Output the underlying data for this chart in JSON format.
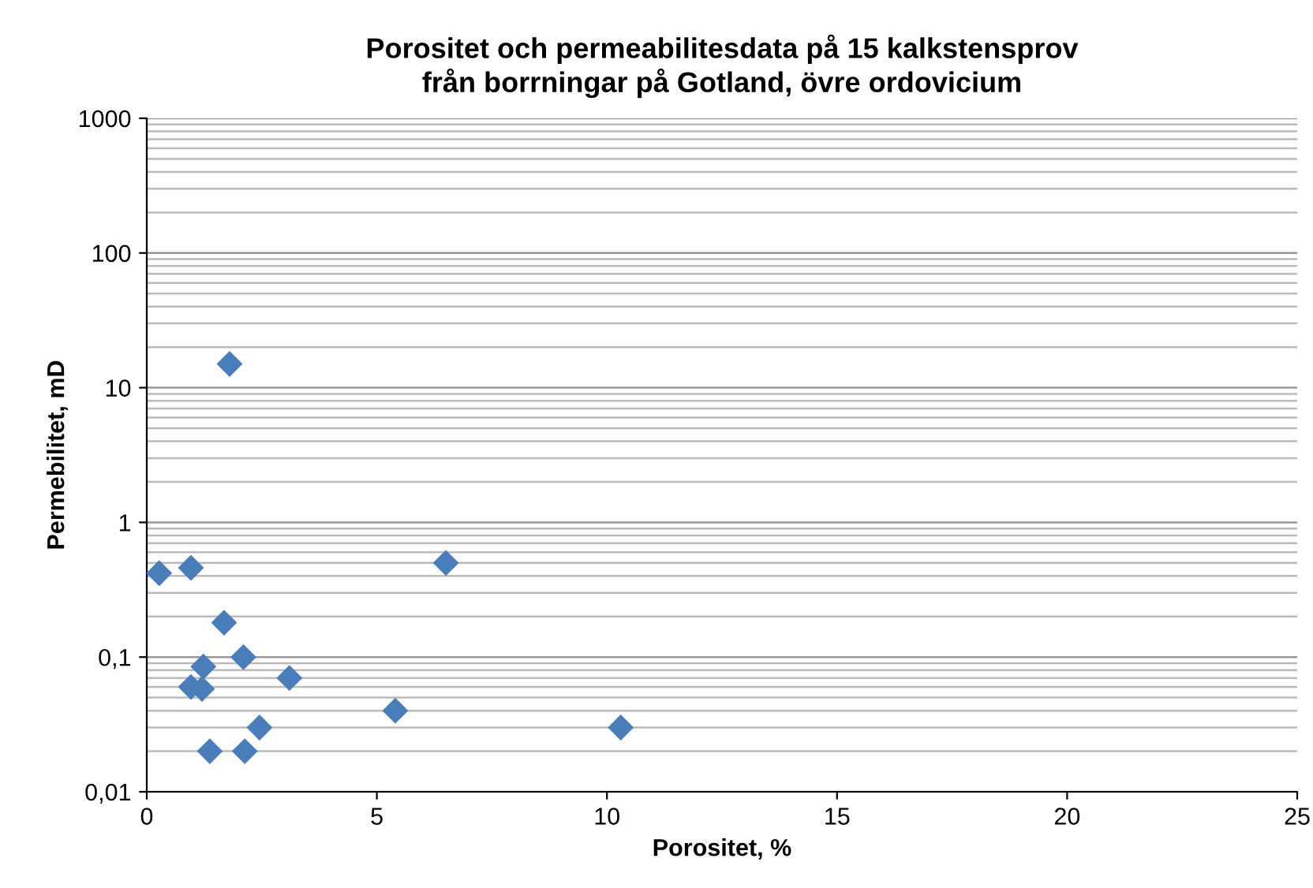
{
  "chart_data": {
    "type": "scatter",
    "title": "Porositet och permeabilitesdata på 15 kalkstensprov\nfrån borrningar på Gotland, övre ordovicium",
    "xlabel": "Porositet, %",
    "ylabel": "Permebilitet, mD",
    "x": [
      0.27,
      0.96,
      1.8,
      6.5,
      1.68,
      2.1,
      1.23,
      0.96,
      1.2,
      3.1,
      5.4,
      2.45,
      1.37,
      2.13,
      10.3
    ],
    "series": [
      {
        "color": "#4a7ebb",
        "values": [
          0.42,
          0.46,
          15,
          0.5,
          0.18,
          0.1,
          0.085,
          0.06,
          0.058,
          0.07,
          0.04,
          0.03,
          0.02,
          0.02,
          0.03
        ]
      }
    ],
    "marker": "diamond",
    "log": "y",
    "grid": "y",
    "legend": false,
    "xlim": [
      0,
      25
    ],
    "xticks": [
      0,
      5,
      10,
      15,
      20,
      25
    ],
    "ylim": [
      0.01,
      1000
    ],
    "yticks": [
      {
        "value": 0.01,
        "label": "0,01"
      },
      {
        "value": 0.1,
        "label": "0,1"
      },
      1,
      10,
      100,
      1000
    ]
  }
}
